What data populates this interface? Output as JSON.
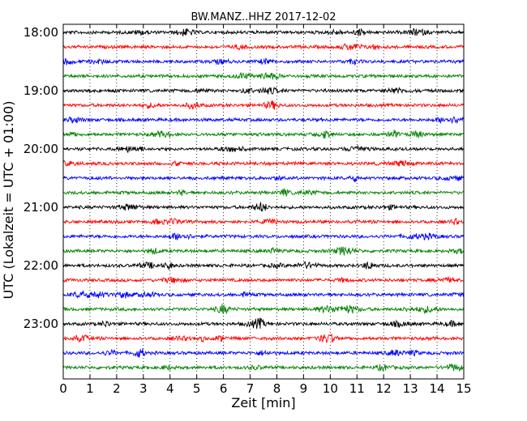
{
  "chart_data": {
    "type": "line",
    "title": "BW.MANZ..HHZ 2017-12-02",
    "xlabel": "Zeit  [min]",
    "ylabel": "UTC (Lokalzeit = UTC + 01:00)",
    "xlim": [
      0,
      15
    ],
    "x_ticks": [
      0,
      1,
      2,
      3,
      4,
      5,
      6,
      7,
      8,
      9,
      10,
      11,
      12,
      13,
      14,
      15
    ],
    "y_tick_labels": [
      "18:00",
      "19:00",
      "20:00",
      "21:00",
      "22:00",
      "23:00"
    ],
    "grid": "vertical-dotted",
    "trace_colors": [
      "#000000",
      "#ff0000",
      "#0000ff",
      "#008000"
    ],
    "series": [
      {
        "start": "18:00"
      },
      {
        "start": "18:15"
      },
      {
        "start": "18:30"
      },
      {
        "start": "18:45"
      },
      {
        "start": "19:00"
      },
      {
        "start": "19:15"
      },
      {
        "start": "19:30"
      },
      {
        "start": "19:45"
      },
      {
        "start": "20:00"
      },
      {
        "start": "20:15"
      },
      {
        "start": "20:30"
      },
      {
        "start": "20:45"
      },
      {
        "start": "21:00"
      },
      {
        "start": "21:15"
      },
      {
        "start": "21:30"
      },
      {
        "start": "21:45"
      },
      {
        "start": "22:00"
      },
      {
        "start": "22:15"
      },
      {
        "start": "22:30"
      },
      {
        "start": "22:45"
      },
      {
        "start": "23:00"
      },
      {
        "start": "23:15"
      },
      {
        "start": "23:30"
      },
      {
        "start": "23:45"
      }
    ]
  }
}
